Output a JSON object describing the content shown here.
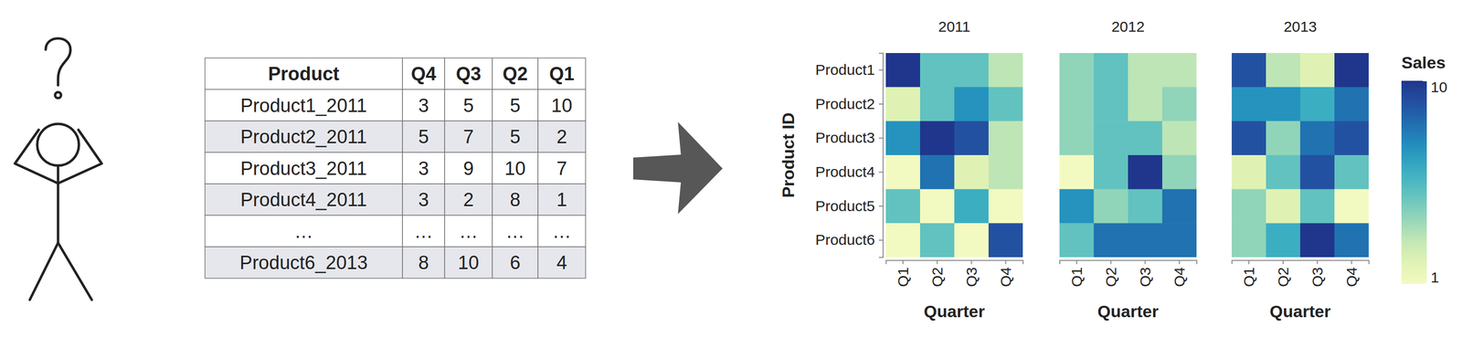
{
  "table": {
    "header": [
      "Product",
      "Q4",
      "Q3",
      "Q2",
      "Q1"
    ],
    "rows": [
      [
        "Product1_2011",
        3,
        5,
        5,
        10
      ],
      [
        "Product2_2011",
        5,
        7,
        5,
        2
      ],
      [
        "Product3_2011",
        3,
        9,
        10,
        7
      ],
      [
        "Product4_2011",
        3,
        2,
        8,
        1
      ],
      [
        "…",
        "…",
        "…",
        "…",
        "…"
      ],
      [
        "Product6_2013",
        8,
        10,
        6,
        4
      ]
    ]
  },
  "colorbar": {
    "title": "Sales",
    "range": [
      1,
      10
    ],
    "ticks": [
      10,
      1
    ]
  },
  "chart_data": [
    {
      "type": "heatmap",
      "title": "2011",
      "x_label": "Quarter",
      "y_label": "Product ID",
      "x": [
        "Q1",
        "Q2",
        "Q3",
        "Q4"
      ],
      "y": [
        "Product1",
        "Product2",
        "Product3",
        "Product4",
        "Product5",
        "Product6"
      ],
      "cells": [
        [
          10,
          5,
          5,
          3
        ],
        [
          2,
          5,
          7,
          5
        ],
        [
          7,
          10,
          9,
          3
        ],
        [
          1,
          8,
          2,
          3
        ],
        [
          5,
          1,
          6,
          1
        ],
        [
          1,
          5,
          1,
          9
        ]
      ]
    },
    {
      "type": "heatmap",
      "title": "2012",
      "x_label": "Quarter",
      "tick_labels": "x",
      "x": [
        "Q1",
        "Q2",
        "Q3",
        "Q4"
      ],
      "cells": [
        [
          4,
          5,
          3,
          3
        ],
        [
          4,
          5,
          3,
          4
        ],
        [
          4,
          5,
          5,
          3
        ],
        [
          1,
          5,
          10,
          4
        ],
        [
          7,
          4,
          5,
          8
        ],
        [
          5,
          8,
          8,
          8
        ]
      ]
    },
    {
      "type": "heatmap",
      "title": "2013",
      "x_label": "Quarter",
      "tick_labels": "x",
      "x": [
        "Q1",
        "Q2",
        "Q3",
        "Q4"
      ],
      "cells": [
        [
          9,
          3,
          2,
          10
        ],
        [
          7,
          7,
          6,
          8
        ],
        [
          9,
          4,
          8,
          9
        ],
        [
          2,
          5,
          9,
          5
        ],
        [
          4,
          2,
          5,
          1
        ],
        [
          4,
          6,
          10,
          8
        ]
      ]
    }
  ]
}
